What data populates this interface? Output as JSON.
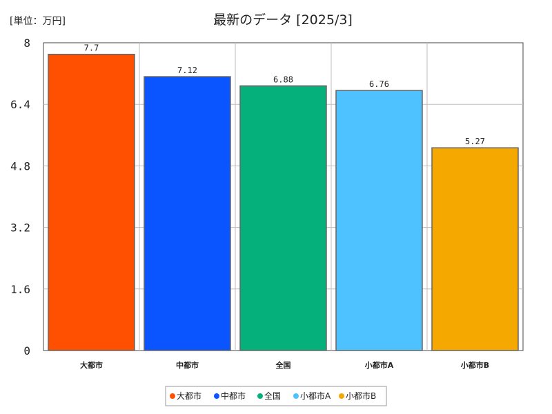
{
  "chart_data": {
    "type": "bar",
    "title": "最新のデータ [2025/3]",
    "unit_label": "[単位：万円]",
    "categories": [
      "大都市",
      "中都市",
      "全国",
      "小都市A",
      "小都市B"
    ],
    "values": [
      7.7,
      7.12,
      6.88,
      6.76,
      5.27
    ],
    "data_labels": [
      "7.7",
      "7.12",
      "6.88",
      "6.76",
      "5.27"
    ],
    "colors": [
      "#ff4f00",
      "#0a55ff",
      "#05b07b",
      "#4ec1ff",
      "#f5a800"
    ],
    "ylim": [
      0,
      8
    ],
    "yticks": [
      0,
      1.6,
      3.2,
      4.8,
      6.4,
      8
    ],
    "ytick_labels": [
      "0",
      "1.6",
      "3.2",
      "4.8",
      "6.4",
      "8"
    ],
    "grid": true,
    "legend_position": "bottom",
    "xlabel": "",
    "ylabel": ""
  }
}
